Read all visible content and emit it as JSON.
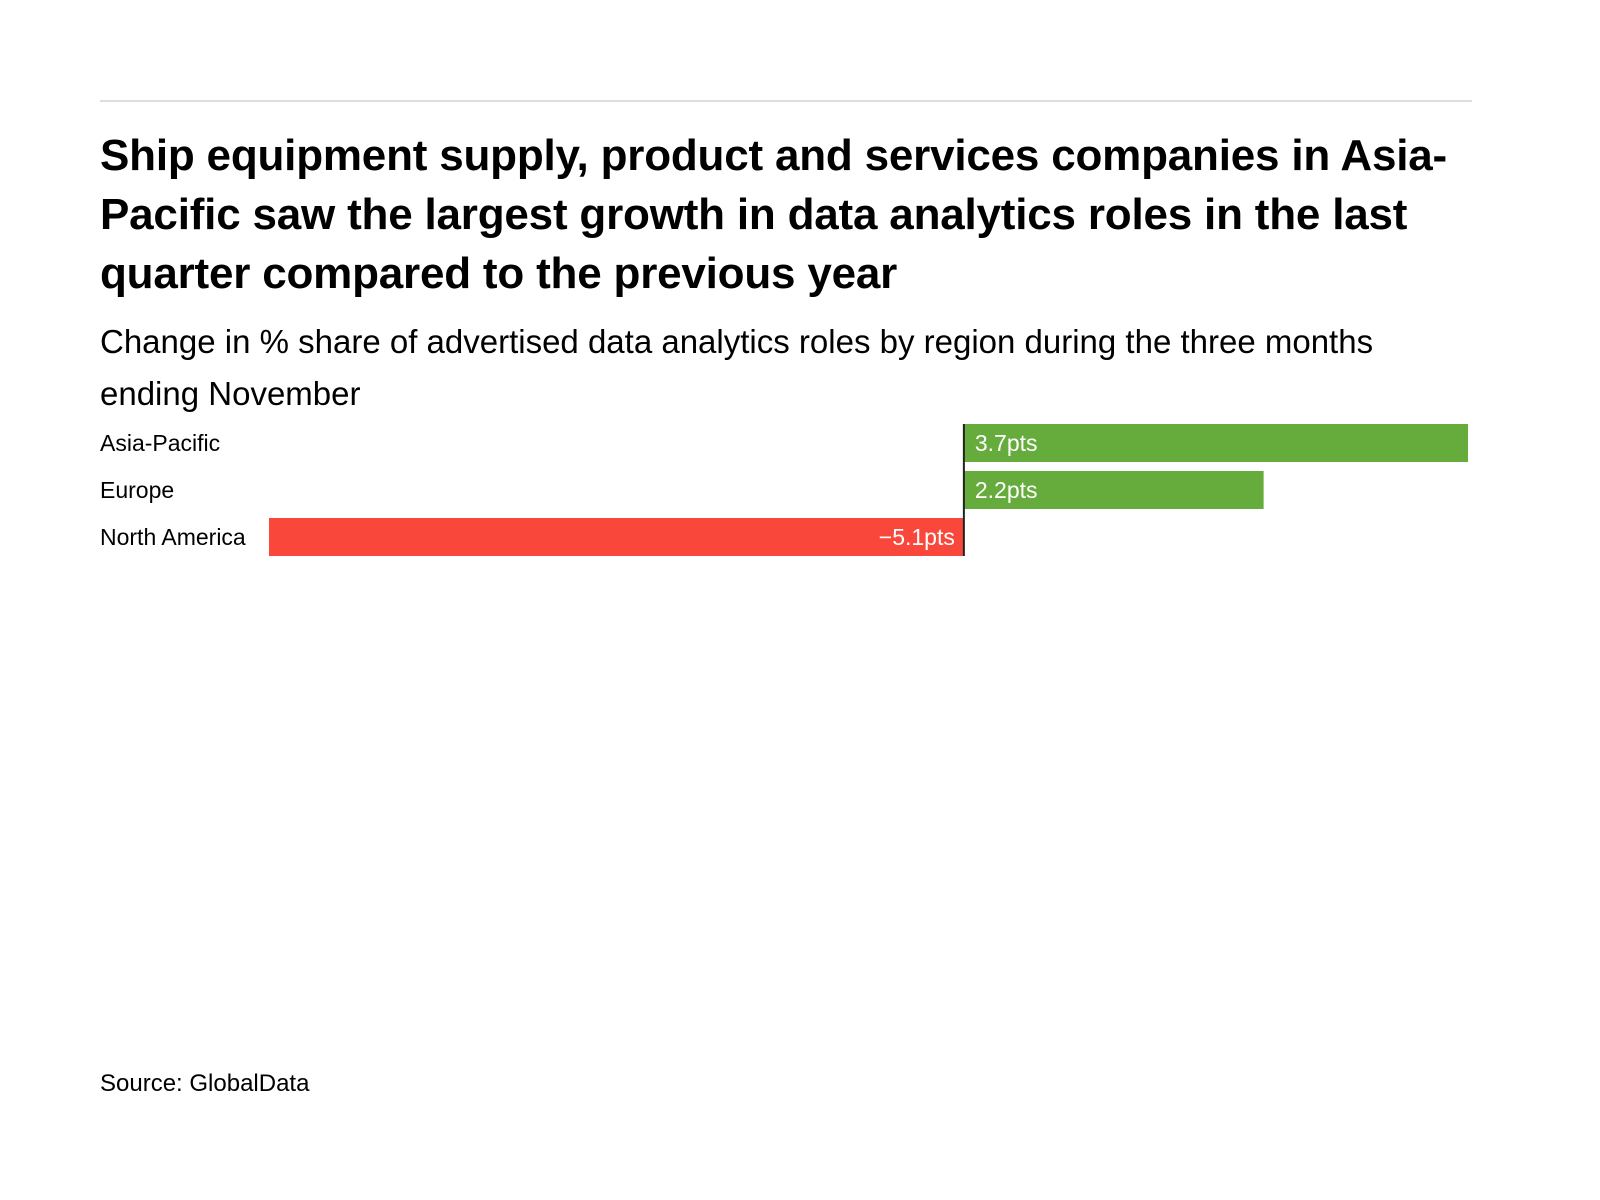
{
  "chart_data": {
    "type": "bar",
    "orientation": "horizontal",
    "title": "Ship equipment supply, product and services companies in Asia-Pacific saw the largest growth in data analytics roles in the last quarter compared to the previous year",
    "subtitle": "Change in % share of advertised data analytics roles by region during the three months ending November",
    "categories": [
      "Asia-Pacific",
      "Europe",
      "North America"
    ],
    "values": [
      3.7,
      2.2,
      -5.1
    ],
    "data_labels": [
      "3.7pts",
      "2.2pts",
      "−5.1pts"
    ],
    "unit": "pts",
    "xlim": [
      -5.1,
      3.7
    ],
    "grid": false,
    "legend": "none",
    "colors": {
      "positive": "#66ac3c",
      "negative": "#f9483b",
      "zero_line": "#222222"
    },
    "source": "Source: GlobalData"
  }
}
